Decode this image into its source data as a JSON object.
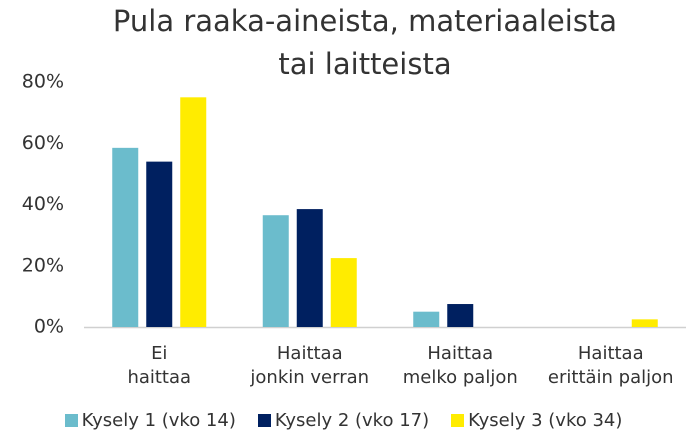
{
  "chart_data": {
    "type": "bar",
    "title": "Pula raaka-aineista, materiaaleista\ntai laitteista",
    "categories": [
      "Ei\nhaittaa",
      "Haittaa\njonkin verran",
      "Haittaa\nmelko paljon",
      "Haittaa\nerittäin paljon"
    ],
    "series": [
      {
        "name": "Kysely 1 (vko 14)",
        "color": "#6bbccc",
        "values": [
          58.5,
          36.5,
          5,
          0
        ]
      },
      {
        "name": "Kysely 2 (vko 17)",
        "color": "#002060",
        "values": [
          54,
          38.5,
          7.5,
          0
        ]
      },
      {
        "name": "Kysely 3 (vko 34)",
        "color": "#ffec00",
        "values": [
          75,
          22.5,
          0,
          2.5
        ]
      }
    ],
    "ylim": [
      0,
      80
    ],
    "yticks": [
      {
        "value": 0,
        "label": "0%"
      },
      {
        "value": 20,
        "label": "20%"
      },
      {
        "value": 40,
        "label": "40%"
      },
      {
        "value": 60,
        "label": "60%"
      },
      {
        "value": 80,
        "label": "80%"
      }
    ],
    "grid": false,
    "legend": "bottom"
  }
}
